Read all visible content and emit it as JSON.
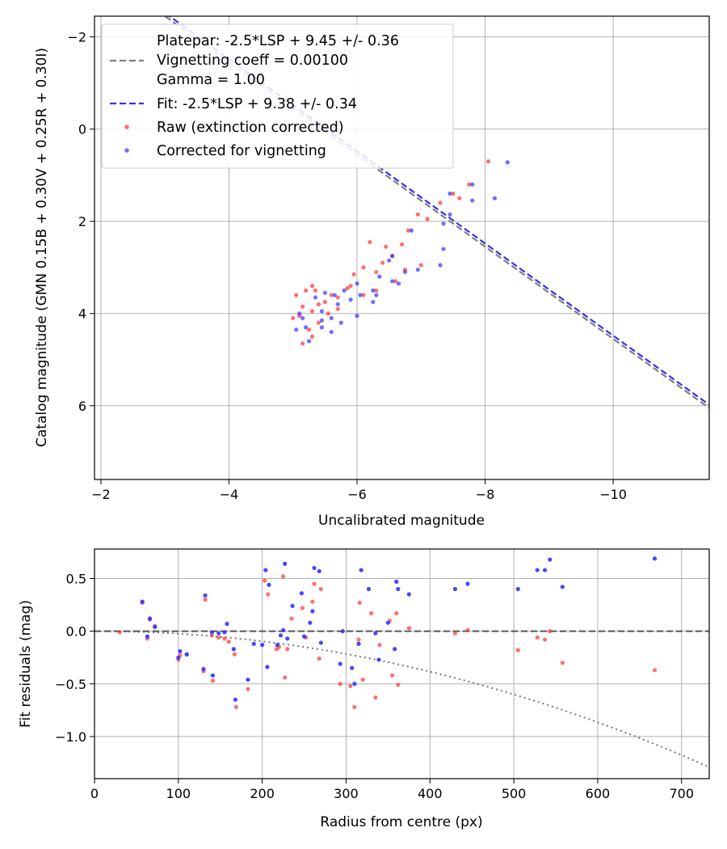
{
  "chart_data": [
    {
      "type": "scatter",
      "name": "photometry-fit",
      "xlabel": "Uncalibrated magnitude",
      "ylabel": "Catalog magnitude (GMN 0.15B + 0.30V + 0.25R + 0.30I)",
      "xlim": [
        -1.9,
        -11.5
      ],
      "ylim": [
        7.6,
        -2.45
      ],
      "grid": true,
      "xticks": [
        -2,
        -4,
        -6,
        -8,
        -10
      ],
      "xtick_labels": [
        "−2",
        "−4",
        "−6",
        "−8",
        "−10"
      ],
      "yticks": [
        -2,
        0,
        2,
        4,
        6
      ],
      "ytick_labels": [
        "−2",
        "0",
        "2",
        "4",
        "6"
      ],
      "legend_position": "top-left",
      "legend": [
        {
          "label": "Platepar: -2.5*LSP + 9.45 +/- 0.36",
          "kind": "line",
          "color": "#7f7f7f",
          "dashed": true,
          "slope": 1.0,
          "intercept": 9.45
        },
        {
          "label": "Vignetting coeff = 0.00100",
          "kind": "text"
        },
        {
          "label": "Gamma = 1.00",
          "kind": "text"
        },
        {
          "label": "Fit: -2.5*LSP + 9.38 +/- 0.34",
          "kind": "line",
          "color": "#3333ee",
          "dashed": true,
          "slope": 1.0,
          "intercept": 9.38
        },
        {
          "label": "Raw (extinction corrected)",
          "kind": "marker",
          "color": "#ff3333"
        },
        {
          "label": "Corrected for vignetting",
          "kind": "marker",
          "color": "#3333ff"
        }
      ],
      "series": [
        {
          "name": "Raw (extinction corrected)",
          "color": "#ff3333",
          "points": [
            [
              -8.05,
              0.7
            ],
            [
              -7.75,
              1.2
            ],
            [
              -7.5,
              1.4
            ],
            [
              -7.6,
              1.5
            ],
            [
              -7.3,
              1.6
            ],
            [
              -7.1,
              1.95
            ],
            [
              -6.95,
              1.85
            ],
            [
              -6.8,
              2.2
            ],
            [
              -6.7,
              2.5
            ],
            [
              -6.45,
              2.55
            ],
            [
              -6.2,
              2.45
            ],
            [
              -6.55,
              2.75
            ],
            [
              -6.4,
              2.9
            ],
            [
              -6.1,
              3.0
            ],
            [
              -5.95,
              3.15
            ],
            [
              -6.3,
              3.1
            ],
            [
              -6.6,
              3.3
            ],
            [
              -6.75,
              3.05
            ],
            [
              -6.3,
              3.5
            ],
            [
              -5.85,
              3.45
            ],
            [
              -6.1,
              3.6
            ],
            [
              -5.9,
              3.4
            ],
            [
              -5.6,
              3.6
            ],
            [
              -5.7,
              3.65
            ],
            [
              -5.5,
              3.75
            ],
            [
              -5.4,
              3.8
            ],
            [
              -5.35,
              3.5
            ],
            [
              -5.3,
              3.4
            ],
            [
              -5.2,
              3.5
            ],
            [
              -5.05,
              3.6
            ],
            [
              -5.15,
              3.85
            ],
            [
              -5.3,
              3.95
            ],
            [
              -5.1,
              4.05
            ],
            [
              -5.0,
              4.1
            ],
            [
              -5.4,
              4.2
            ],
            [
              -5.25,
              4.35
            ],
            [
              -5.55,
              4.0
            ],
            [
              -5.15,
              4.65
            ],
            [
              -5.3,
              4.5
            ],
            [
              -5.7,
              3.9
            ],
            [
              -7.0,
              2.95
            ]
          ]
        },
        {
          "name": "Corrected for vignetting",
          "color": "#3333ff",
          "points": [
            [
              -8.35,
              0.72
            ],
            [
              -7.8,
              1.2
            ],
            [
              -7.45,
              1.4
            ],
            [
              -7.8,
              1.55
            ],
            [
              -8.15,
              1.5
            ],
            [
              -7.45,
              1.85
            ],
            [
              -7.35,
              2.05
            ],
            [
              -6.85,
              2.2
            ],
            [
              -6.55,
              2.75
            ],
            [
              -6.5,
              2.85
            ],
            [
              -6.95,
              3.05
            ],
            [
              -7.35,
              2.6
            ],
            [
              -7.3,
              2.95
            ],
            [
              -6.35,
              3.2
            ],
            [
              -6.25,
              3.5
            ],
            [
              -6.55,
              3.3
            ],
            [
              -6.0,
              3.35
            ],
            [
              -5.8,
              3.5
            ],
            [
              -6.05,
              3.6
            ],
            [
              -5.7,
              3.8
            ],
            [
              -5.45,
              3.95
            ],
            [
              -5.15,
              4.1
            ],
            [
              -5.2,
              4.3
            ],
            [
              -5.45,
              4.15
            ],
            [
              -5.6,
              4.1
            ],
            [
              -5.6,
              4.4
            ],
            [
              -5.45,
              4.3
            ],
            [
              -5.25,
              4.6
            ],
            [
              -5.65,
              3.6
            ],
            [
              -5.9,
              3.7
            ],
            [
              -6.25,
              3.75
            ],
            [
              -6.0,
              4.05
            ],
            [
              -6.65,
              3.35
            ],
            [
              -6.3,
              3.6
            ],
            [
              -5.05,
              4.35
            ],
            [
              -5.5,
              3.55
            ],
            [
              -5.75,
              4.2
            ],
            [
              -5.1,
              4.0
            ],
            [
              -5.35,
              3.65
            ],
            [
              -6.75,
              3.1
            ]
          ]
        }
      ]
    },
    {
      "type": "scatter",
      "name": "residuals-vs-radius",
      "xlabel": "Radius from centre (px)",
      "ylabel": "Fit residuals (mag)",
      "xlim": [
        0,
        733
      ],
      "ylim": [
        -1.4,
        0.78
      ],
      "grid": true,
      "xticks": [
        0,
        100,
        200,
        300,
        400,
        500,
        600,
        700
      ],
      "xtick_labels": [
        "0",
        "100",
        "200",
        "300",
        "400",
        "500",
        "600",
        "700"
      ],
      "yticks": [
        0.5,
        0.0,
        -0.5,
        -1.0
      ],
      "ytick_labels": [
        "0.5",
        "0.0",
        "−0.5",
        "−1.0"
      ],
      "reference_line": {
        "y": 0.0,
        "color": "#555555",
        "dashed": true
      },
      "vignetting_curve": {
        "coeff": 0.001,
        "color": "#777777",
        "dotted": true
      },
      "series": [
        {
          "name": "Raw",
          "color": "#ff3333",
          "points": [
            [
              30,
              -0.01
            ],
            [
              57,
              0.27
            ],
            [
              63,
              -0.07
            ],
            [
              66,
              0.11
            ],
            [
              72,
              0.05
            ],
            [
              100,
              -0.27
            ],
            [
              102,
              -0.23
            ],
            [
              110,
              -0.22
            ],
            [
              130,
              -0.38
            ],
            [
              132,
              0.3
            ],
            [
              140,
              -0.04
            ],
            [
              141,
              -0.47
            ],
            [
              148,
              -0.06
            ],
            [
              155,
              -0.07
            ],
            [
              160,
              -0.1
            ],
            [
              167,
              -0.22
            ],
            [
              169,
              -0.72
            ],
            [
              183,
              -0.55
            ],
            [
              203,
              0.48
            ],
            [
              207,
              0.35
            ],
            [
              217,
              -0.17
            ],
            [
              220,
              -0.15
            ],
            [
              225,
              0.52
            ],
            [
              227,
              -0.44
            ],
            [
              230,
              -0.17
            ],
            [
              235,
              0.12
            ],
            [
              248,
              0.22
            ],
            [
              252,
              -0.06
            ],
            [
              260,
              0.28
            ],
            [
              262,
              0.45
            ],
            [
              268,
              -0.26
            ],
            [
              270,
              0.4
            ],
            [
              293,
              -0.5
            ],
            [
              305,
              -0.52
            ],
            [
              310,
              -0.72
            ],
            [
              315,
              -0.08
            ],
            [
              316,
              0.27
            ],
            [
              320,
              -0.46
            ],
            [
              330,
              0.17
            ],
            [
              335,
              -0.63
            ],
            [
              340,
              -0.13
            ],
            [
              352,
              0.1
            ],
            [
              355,
              -0.42
            ],
            [
              360,
              0.17
            ],
            [
              362,
              -0.51
            ],
            [
              375,
              0.03
            ],
            [
              430,
              -0.02
            ],
            [
              445,
              0.01
            ],
            [
              505,
              -0.18
            ],
            [
              528,
              -0.06
            ],
            [
              537,
              -0.08
            ],
            [
              543,
              0.0
            ],
            [
              558,
              -0.3
            ],
            [
              668,
              -0.37
            ]
          ]
        },
        {
          "name": "Corrected",
          "color": "#3333ff",
          "points": [
            [
              57,
              0.28
            ],
            [
              63,
              -0.05
            ],
            [
              66,
              0.12
            ],
            [
              72,
              0.04
            ],
            [
              100,
              -0.25
            ],
            [
              102,
              -0.19
            ],
            [
              110,
              -0.22
            ],
            [
              130,
              -0.36
            ],
            [
              132,
              0.34
            ],
            [
              140,
              -0.01
            ],
            [
              141,
              -0.42
            ],
            [
              148,
              -0.02
            ],
            [
              155,
              -0.01
            ],
            [
              158,
              0.07
            ],
            [
              166,
              -0.17
            ],
            [
              168,
              -0.65
            ],
            [
              183,
              -0.46
            ],
            [
              190,
              -0.12
            ],
            [
              200,
              -0.13
            ],
            [
              204,
              0.58
            ],
            [
              206,
              -0.34
            ],
            [
              208,
              0.44
            ],
            [
              218,
              -0.13
            ],
            [
              222,
              -0.04
            ],
            [
              225,
              0.01
            ],
            [
              227,
              0.64
            ],
            [
              230,
              -0.07
            ],
            [
              236,
              0.24
            ],
            [
              247,
              0.36
            ],
            [
              250,
              -0.05
            ],
            [
              257,
              0.08
            ],
            [
              260,
              0.19
            ],
            [
              262,
              0.6
            ],
            [
              268,
              0.57
            ],
            [
              270,
              -0.11
            ],
            [
              293,
              -0.31
            ],
            [
              296,
              0.0
            ],
            [
              307,
              -0.35
            ],
            [
              310,
              -0.5
            ],
            [
              315,
              -0.12
            ],
            [
              318,
              0.58
            ],
            [
              327,
              0.4
            ],
            [
              335,
              -0.02
            ],
            [
              339,
              -0.27
            ],
            [
              350,
              0.08
            ],
            [
              358,
              -0.17
            ],
            [
              360,
              0.47
            ],
            [
              362,
              0.4
            ],
            [
              375,
              0.35
            ],
            [
              430,
              0.4
            ],
            [
              445,
              0.45
            ],
            [
              505,
              0.4
            ],
            [
              528,
              0.58
            ],
            [
              537,
              0.58
            ],
            [
              543,
              0.68
            ],
            [
              558,
              0.42
            ],
            [
              668,
              0.69
            ]
          ]
        }
      ]
    }
  ]
}
